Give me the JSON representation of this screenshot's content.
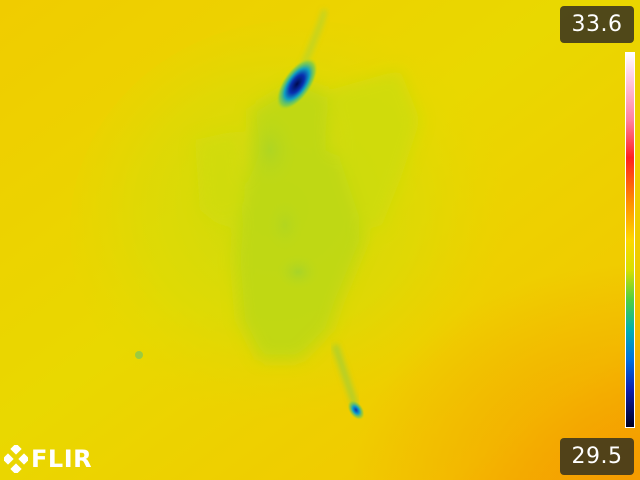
{
  "scale": {
    "max_temp": "33.6",
    "min_temp": "29.5"
  },
  "brand": {
    "name": "FLIR"
  },
  "colors": {
    "background": "#f0d000",
    "cool_region": "#b8d820",
    "cold_spot": "#1030a0"
  }
}
